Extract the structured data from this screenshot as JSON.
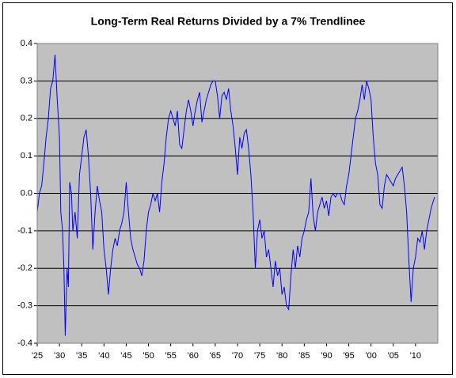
{
  "chart_data": {
    "type": "line",
    "title": "Long-Term Real Returns Divided by a 7% Trendlinee",
    "x": [
      1925,
      1925.5,
      1926,
      1926.5,
      1927,
      1927.5,
      1928,
      1928.5,
      1929,
      1929.5,
      1930,
      1930.3,
      1930.7,
      1931,
      1931.3,
      1931.7,
      1932,
      1932.3,
      1932.7,
      1933,
      1933.5,
      1934,
      1934.5,
      1935,
      1935.5,
      1936,
      1936.5,
      1937,
      1937.5,
      1938,
      1938.5,
      1939,
      1939.5,
      1940,
      1940.5,
      1941,
      1941.5,
      1942,
      1942.5,
      1943,
      1943.5,
      1944,
      1944.5,
      1945,
      1945.5,
      1946,
      1946.5,
      1947,
      1947.5,
      1948,
      1948.5,
      1949,
      1949.5,
      1950,
      1950.5,
      1951,
      1951.5,
      1952,
      1952.5,
      1953,
      1953.5,
      1954,
      1954.5,
      1955,
      1955.5,
      1956,
      1956.5,
      1957,
      1957.5,
      1958,
      1958.5,
      1959,
      1959.5,
      1960,
      1960.5,
      1961,
      1961.5,
      1962,
      1962.5,
      1963,
      1963.5,
      1964,
      1964.5,
      1965,
      1965.5,
      1966,
      1966.5,
      1967,
      1967.5,
      1968,
      1968.5,
      1969,
      1969.5,
      1970,
      1970.5,
      1971,
      1971.5,
      1972,
      1972.5,
      1973,
      1973.5,
      1974,
      1974.5,
      1975,
      1975.5,
      1976,
      1976.5,
      1977,
      1977.5,
      1978,
      1978.5,
      1979,
      1979.5,
      1980,
      1980.5,
      1981,
      1981.5,
      1982,
      1982.5,
      1983,
      1983.5,
      1984,
      1984.5,
      1985,
      1985.5,
      1986,
      1986.5,
      1987,
      1987.5,
      1988,
      1988.5,
      1989,
      1989.5,
      1990,
      1990.5,
      1991,
      1991.5,
      1992,
      1992.5,
      1993,
      1993.5,
      1994,
      1994.5,
      1995,
      1995.5,
      1996,
      1996.5,
      1997,
      1997.5,
      1998,
      1998.5,
      1999,
      1999.5,
      2000,
      2000.5,
      2001,
      2001.5,
      2002,
      2002.5,
      2003,
      2003.5,
      2004,
      2004.5,
      2005,
      2005.5,
      2006,
      2006.5,
      2007,
      2007.5,
      2008,
      2008.5,
      2009,
      2009.5,
      2010,
      2010.5,
      2011,
      2011.5,
      2012,
      2012.5,
      2013,
      2013.5,
      2014,
      2014.3
    ],
    "series": [
      {
        "color": "#0000ff",
        "values": [
          -0.05,
          0.0,
          0.02,
          0.08,
          0.15,
          0.2,
          0.28,
          0.3,
          0.37,
          0.25,
          0.15,
          -0.05,
          -0.1,
          -0.2,
          -0.38,
          -0.2,
          -0.25,
          0.03,
          0.0,
          -0.1,
          -0.05,
          -0.12,
          0.05,
          0.1,
          0.15,
          0.17,
          0.1,
          0.0,
          -0.15,
          -0.05,
          0.02,
          -0.02,
          -0.05,
          -0.15,
          -0.2,
          -0.27,
          -0.2,
          -0.15,
          -0.12,
          -0.14,
          -0.1,
          -0.08,
          -0.05,
          0.03,
          -0.05,
          -0.12,
          -0.15,
          -0.17,
          -0.19,
          -0.2,
          -0.22,
          -0.18,
          -0.1,
          -0.05,
          -0.03,
          0.0,
          -0.02,
          0.0,
          -0.05,
          0.03,
          0.08,
          0.15,
          0.2,
          0.22,
          0.2,
          0.18,
          0.22,
          0.13,
          0.12,
          0.17,
          0.22,
          0.25,
          0.22,
          0.18,
          0.22,
          0.25,
          0.27,
          0.19,
          0.22,
          0.25,
          0.27,
          0.29,
          0.3,
          0.3,
          0.26,
          0.2,
          0.26,
          0.27,
          0.25,
          0.28,
          0.22,
          0.18,
          0.12,
          0.05,
          0.15,
          0.12,
          0.16,
          0.17,
          0.12,
          0.05,
          -0.05,
          -0.2,
          -0.1,
          -0.07,
          -0.12,
          -0.1,
          -0.17,
          -0.15,
          -0.2,
          -0.25,
          -0.18,
          -0.22,
          -0.2,
          -0.27,
          -0.25,
          -0.3,
          -0.31,
          -0.22,
          -0.15,
          -0.2,
          -0.14,
          -0.17,
          -0.12,
          -0.1,
          -0.07,
          -0.05,
          0.04,
          -0.06,
          -0.1,
          -0.05,
          -0.03,
          -0.01,
          -0.04,
          -0.02,
          -0.06,
          -0.01,
          0.0,
          -0.01,
          0.0,
          0.0,
          -0.02,
          -0.03,
          0.02,
          0.05,
          0.1,
          0.15,
          0.2,
          0.22,
          0.25,
          0.29,
          0.25,
          0.3,
          0.28,
          0.25,
          0.15,
          0.08,
          0.05,
          -0.03,
          -0.04,
          0.02,
          0.05,
          0.04,
          0.03,
          0.02,
          0.04,
          0.05,
          0.06,
          0.07,
          0.02,
          -0.05,
          -0.18,
          -0.29,
          -0.2,
          -0.17,
          -0.12,
          -0.13,
          -0.1,
          -0.15,
          -0.1,
          -0.07,
          -0.04,
          -0.02,
          -0.01
        ]
      }
    ],
    "xlim": [
      1925,
      2015
    ],
    "xticks": [
      {
        "value": 1925,
        "label": "'25"
      },
      {
        "value": 1930,
        "label": "'30"
      },
      {
        "value": 1935,
        "label": "'35"
      },
      {
        "value": 1940,
        "label": "'40"
      },
      {
        "value": 1945,
        "label": "'45"
      },
      {
        "value": 1950,
        "label": "'50"
      },
      {
        "value": 1955,
        "label": "'55"
      },
      {
        "value": 1960,
        "label": "'60"
      },
      {
        "value": 1965,
        "label": "'65"
      },
      {
        "value": 1970,
        "label": "'70"
      },
      {
        "value": 1975,
        "label": "'75"
      },
      {
        "value": 1980,
        "label": "'80"
      },
      {
        "value": 1985,
        "label": "'85"
      },
      {
        "value": 1990,
        "label": "'90"
      },
      {
        "value": 1995,
        "label": "'95"
      },
      {
        "value": 2000,
        "label": "'00"
      },
      {
        "value": 2005,
        "label": "'05"
      },
      {
        "value": 2010,
        "label": "'10"
      }
    ],
    "ylim": [
      -0.4,
      0.4
    ],
    "yticks": [
      -0.4,
      -0.3,
      -0.2,
      -0.1,
      {
        "value": 0,
        "label": "0.0"
      },
      0.1,
      0.2,
      0.3,
      0.4
    ],
    "grid": true,
    "plot_background": "#c0c0c0"
  }
}
